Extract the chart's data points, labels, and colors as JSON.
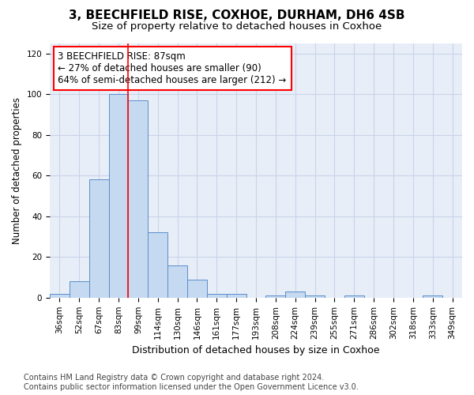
{
  "title1": "3, BEECHFIELD RISE, COXHOE, DURHAM, DH6 4SB",
  "title2": "Size of property relative to detached houses in Coxhoe",
  "xlabel": "Distribution of detached houses by size in Coxhoe",
  "ylabel": "Number of detached properties",
  "categories": [
    "36sqm",
    "52sqm",
    "67sqm",
    "83sqm",
    "99sqm",
    "114sqm",
    "130sqm",
    "146sqm",
    "161sqm",
    "177sqm",
    "193sqm",
    "208sqm",
    "224sqm",
    "239sqm",
    "255sqm",
    "271sqm",
    "286sqm",
    "302sqm",
    "318sqm",
    "333sqm",
    "349sqm"
  ],
  "values": [
    2,
    8,
    58,
    100,
    97,
    32,
    16,
    9,
    2,
    2,
    0,
    1,
    3,
    1,
    0,
    1,
    0,
    0,
    0,
    1,
    0
  ],
  "bar_color": "#c5d9f0",
  "bar_edge_color": "#5b8ec9",
  "vline_x": 3.5,
  "vline_color": "red",
  "annotation_text": "3 BEECHFIELD RISE: 87sqm\n← 27% of detached houses are smaller (90)\n64% of semi-detached houses are larger (212) →",
  "annotation_box_color": "white",
  "annotation_box_edgecolor": "red",
  "ylim": [
    0,
    125
  ],
  "yticks": [
    0,
    20,
    40,
    60,
    80,
    100,
    120
  ],
  "grid_color": "#c8d4e8",
  "bg_color": "#e8eef8",
  "footer_text": "Contains HM Land Registry data © Crown copyright and database right 2024.\nContains public sector information licensed under the Open Government Licence v3.0.",
  "title1_fontsize": 11,
  "title2_fontsize": 9.5,
  "xlabel_fontsize": 9,
  "ylabel_fontsize": 8.5,
  "tick_fontsize": 7.5,
  "annotation_fontsize": 8.5,
  "footer_fontsize": 7
}
